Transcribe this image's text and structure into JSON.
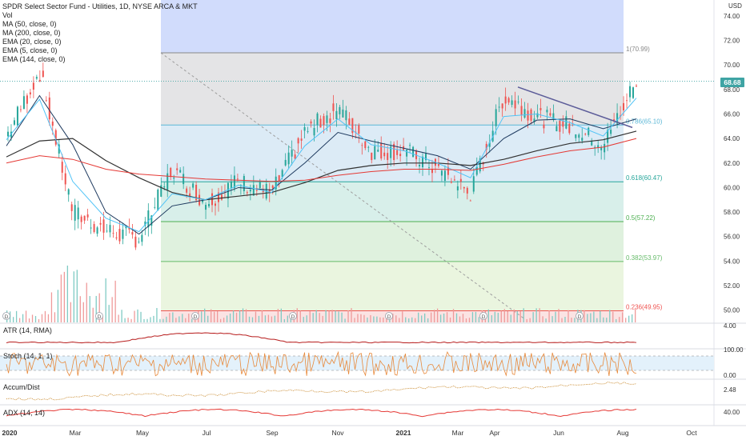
{
  "symbol": {
    "title": "SPDR Select Sector Fund - Utilities, 1D, NYSE ARCA & MKT",
    "currency": "USD",
    "last_price": "68.68"
  },
  "indicators": [
    "Vol",
    "MA (50, close, 0)",
    "MA (200, close, 0)",
    "EMA (20, close, 0)",
    "EMA (5, close, 0)",
    "EMA (144, close, 0)"
  ],
  "panes": {
    "atr": {
      "label": "ATR (14, RMA)",
      "ticks": [
        "4.00"
      ]
    },
    "stoch": {
      "label": "Stoch (14, 1, 1)",
      "ticks": [
        "100.00",
        "0.00"
      ]
    },
    "accum": {
      "label": "Accum/Dist",
      "ticks": [
        "2.48"
      ]
    },
    "adx": {
      "label": "ADX (14, 14)",
      "ticks": [
        "40.00"
      ]
    }
  },
  "price_axis": [
    "74.00",
    "72.00",
    "70.00",
    "68.00",
    "66.00",
    "64.00",
    "62.00",
    "60.00",
    "58.00",
    "56.00",
    "54.00",
    "52.00",
    "50.00"
  ],
  "time_axis": [
    "2020",
    "Mar",
    "May",
    "Jul",
    "Sep",
    "Nov",
    "2021",
    "Mar",
    "Apr",
    "Jun",
    "Aug",
    "Oct"
  ],
  "fib_levels": [
    {
      "ratio": "1",
      "value": 70.99,
      "label": "1(70.99)"
    },
    {
      "ratio": "0.786",
      "value": 65.1,
      "label": "0.786(65.10)"
    },
    {
      "ratio": "0.618",
      "value": 60.47,
      "label": "0.618(60.47)"
    },
    {
      "ratio": "0.5",
      "value": 57.22,
      "label": "0.5(57.22)"
    },
    {
      "ratio": "0.382",
      "value": 53.97,
      "label": "0.382(53.97)"
    },
    {
      "ratio": "0.236",
      "value": 49.95,
      "label": "0.236(49.95)"
    }
  ],
  "dividend_marker": "D",
  "colors": {
    "up": "#26a69a",
    "down": "#ef5350",
    "ma50": "#1e3a5f",
    "ma200": "#333333",
    "ema20": "#4fc3f7",
    "ema144": "#e53935",
    "accent": "#3fa4a4"
  },
  "chart_data": {
    "type": "line",
    "title": "SPDR Select Sector Fund - Utilities, 1D, NYSE ARCA & MKT",
    "xlabel": "",
    "ylabel": "",
    "ylim": [
      49,
      75.3
    ],
    "x": [
      "2020-01",
      "2020-02",
      "2020-03",
      "2020-04",
      "2020-05",
      "2020-06",
      "2020-07",
      "2020-08",
      "2020-09",
      "2020-10",
      "2020-11",
      "2020-12",
      "2021-01",
      "2021-02",
      "2021-03",
      "2021-04",
      "2021-05",
      "2021-06",
      "2021-07",
      "2021-08"
    ],
    "series": [
      {
        "values": [
          64.2,
          69.5,
          58.0,
          56.5,
          55.8,
          61.5,
          58.8,
          60.5,
          59.5,
          64.5,
          66.5,
          63.0,
          63.0,
          61.5,
          59.5,
          67.5,
          65.8,
          65.0,
          63.5,
          68.68
        ]
      },
      {
        "values": [
          63.4,
          67.5,
          63.5,
          58.0,
          56.2,
          58.5,
          59.0,
          60.0,
          59.8,
          62.0,
          64.5,
          63.8,
          63.2,
          62.6,
          61.5,
          64.0,
          65.5,
          65.6,
          64.8,
          65.6
        ]
      },
      {
        "values": [
          62.5,
          63.8,
          64.0,
          62.2,
          60.8,
          59.6,
          59.0,
          59.3,
          59.6,
          60.4,
          61.4,
          61.8,
          62.0,
          62.0,
          61.8,
          62.3,
          63.0,
          63.6,
          63.9,
          64.6
        ]
      },
      {
        "values": [
          63.9,
          67.2,
          60.5,
          57.5,
          56.4,
          59.5,
          59.0,
          60.2,
          59.6,
          63.4,
          65.6,
          63.5,
          63.0,
          62.0,
          60.8,
          65.8,
          66.0,
          65.3,
          64.2,
          67.3
        ]
      },
      {
        "values": [
          62.0,
          62.6,
          62.3,
          61.5,
          61.1,
          60.9,
          60.7,
          60.6,
          60.5,
          60.6,
          61.0,
          61.3,
          61.5,
          61.5,
          61.4,
          61.9,
          62.5,
          63.0,
          63.3,
          64.0
        ]
      }
    ],
    "volume_label": "Vol"
  }
}
